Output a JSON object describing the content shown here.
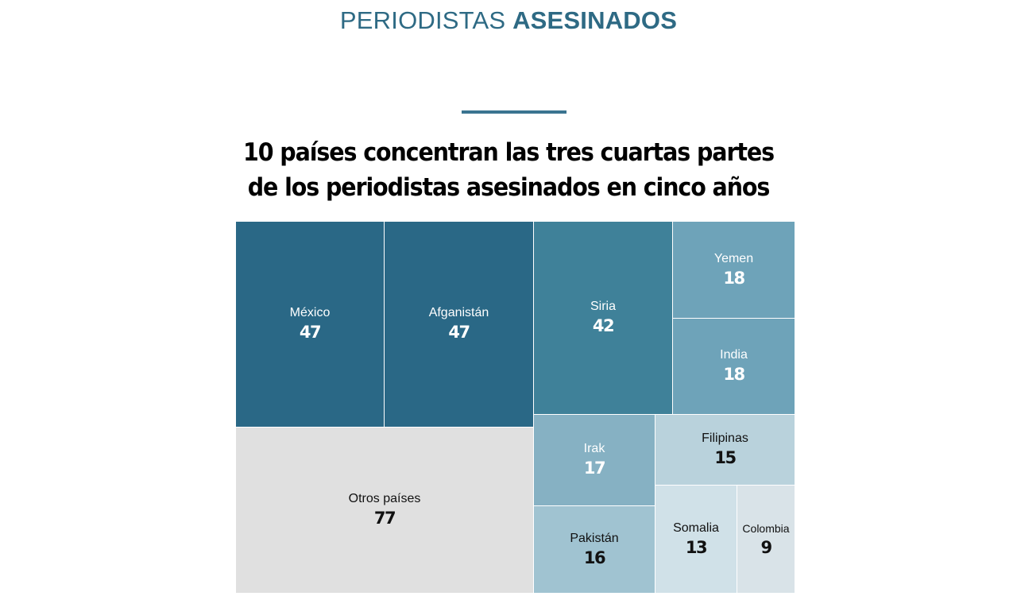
{
  "header": {
    "kicker_light": "PERIODISTAS",
    "kicker_bold": "ASESINADOS"
  },
  "chart_data": {
    "type": "treemap",
    "title_line1": "10 países concentran las tres cuartas partes",
    "title_line2": "de los periodistas asesinados en cinco años",
    "items": [
      {
        "label": "México",
        "value": 47,
        "color": "#2a6886",
        "text_color": "#ffffff"
      },
      {
        "label": "Afganistán",
        "value": 47,
        "color": "#2a6886",
        "text_color": "#ffffff"
      },
      {
        "label": "Siria",
        "value": 42,
        "color": "#3f8199",
        "text_color": "#ffffff"
      },
      {
        "label": "Yemen",
        "value": 18,
        "color": "#6ea3b9",
        "text_color": "#ffffff"
      },
      {
        "label": "India",
        "value": 18,
        "color": "#6ea3b9",
        "text_color": "#ffffff"
      },
      {
        "label": "Irak",
        "value": 17,
        "color": "#86b1c3",
        "text_color": "#ffffff"
      },
      {
        "label": "Pakistán",
        "value": 16,
        "color": "#a0c3d1",
        "text_color": "#111111"
      },
      {
        "label": "Filipinas",
        "value": 15,
        "color": "#b9d2dc",
        "text_color": "#111111"
      },
      {
        "label": "Somalia",
        "value": 13,
        "color": "#d0e1e8",
        "text_color": "#111111"
      },
      {
        "label": "Colombia",
        "value": 9,
        "color": "#d9e3e8",
        "text_color": "#111111"
      },
      {
        "label": "Otros países",
        "value": 77,
        "color": "#e0e0e0",
        "text_color": "#111111"
      }
    ]
  }
}
